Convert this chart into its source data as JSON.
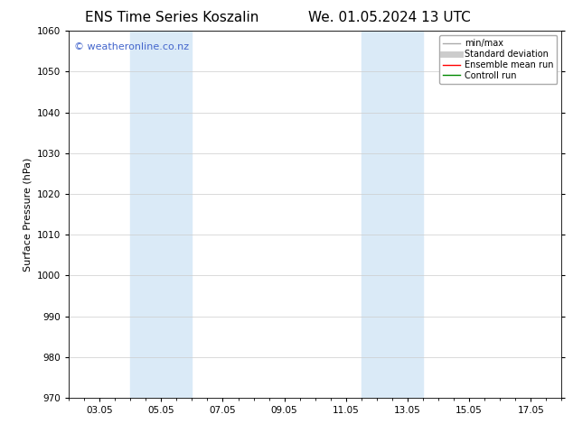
{
  "title_left": "ENS Time Series Koszalin",
  "title_right": "We. 01.05.2024 13 UTC",
  "ylabel": "Surface Pressure (hPa)",
  "ylim": [
    970,
    1060
  ],
  "yticks": [
    970,
    980,
    990,
    1000,
    1010,
    1020,
    1030,
    1040,
    1050,
    1060
  ],
  "xtick_labels": [
    "03.05",
    "05.05",
    "07.05",
    "09.05",
    "11.05",
    "13.05",
    "15.05",
    "17.05"
  ],
  "xtick_positions": [
    2.0,
    4.0,
    6.0,
    8.0,
    10.0,
    12.0,
    14.0,
    16.0
  ],
  "shaded_bands": [
    {
      "x_start": 3.0,
      "x_end": 5.0,
      "color": "#daeaf7"
    },
    {
      "x_start": 10.5,
      "x_end": 12.5,
      "color": "#daeaf7"
    }
  ],
  "watermark_text": "© weatheronline.co.nz",
  "watermark_color": "#4466cc",
  "watermark_fontsize": 8,
  "legend_items": [
    {
      "label": "min/max",
      "color": "#aaaaaa",
      "lw": 1.0,
      "style": "solid"
    },
    {
      "label": "Standard deviation",
      "color": "#cccccc",
      "lw": 5,
      "style": "solid"
    },
    {
      "label": "Ensemble mean run",
      "color": "#ff0000",
      "lw": 1.0,
      "style": "solid"
    },
    {
      "label": "Controll run",
      "color": "#008800",
      "lw": 1.0,
      "style": "solid"
    }
  ],
  "bg_color": "#ffffff",
  "plot_bg_color": "#ffffff",
  "grid_color": "#cccccc",
  "title_fontsize": 11,
  "ylabel_fontsize": 8,
  "tick_fontsize": 7.5,
  "x_min": 1.0,
  "x_max": 17.0
}
